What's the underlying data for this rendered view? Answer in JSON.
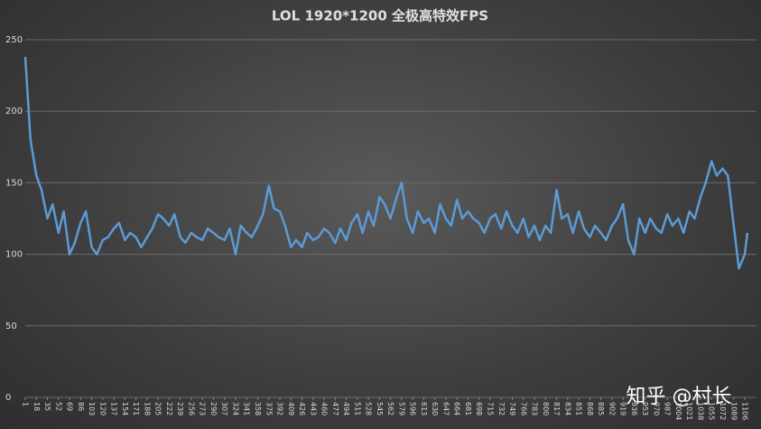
{
  "chart_data": {
    "type": "line",
    "title": "LOL 1920*1200 全极高特效FPS",
    "watermark": "知乎 @村长",
    "x": [
      1,
      9,
      18,
      26,
      35,
      43,
      52,
      60,
      69,
      77,
      86,
      94,
      103,
      111,
      120,
      128,
      137,
      145,
      154,
      162,
      171,
      179,
      188,
      196,
      205,
      213,
      222,
      230,
      239,
      247,
      256,
      264,
      273,
      281,
      290,
      298,
      307,
      315,
      324,
      332,
      341,
      349,
      358,
      366,
      375,
      383,
      392,
      400,
      409,
      417,
      426,
      434,
      443,
      451,
      460,
      468,
      477,
      485,
      494,
      502,
      511,
      519,
      528,
      536,
      545,
      553,
      562,
      570,
      579,
      587,
      596,
      604,
      613,
      621,
      630,
      638,
      647,
      655,
      664,
      672,
      681,
      689,
      698,
      706,
      715,
      723,
      732,
      740,
      749,
      757,
      766,
      774,
      783,
      791,
      800,
      808,
      817,
      825,
      834,
      842,
      851,
      859,
      868,
      876,
      885,
      893,
      902,
      910,
      919,
      927,
      936,
      944,
      953,
      961,
      970,
      978,
      987,
      995,
      1004,
      1012,
      1021,
      1029,
      1038,
      1046,
      1055,
      1063,
      1072,
      1080,
      1089,
      1097,
      1106,
      1110
    ],
    "series": [
      {
        "name": "FPS",
        "color": "#5b9bd5",
        "values": [
          238,
          180,
          155,
          145,
          125,
          135,
          115,
          130,
          100,
          108,
          122,
          130,
          105,
          100,
          110,
          112,
          118,
          122,
          110,
          115,
          112,
          105,
          112,
          118,
          128,
          125,
          120,
          128,
          112,
          108,
          115,
          112,
          110,
          118,
          115,
          112,
          110,
          118,
          100,
          120,
          115,
          112,
          120,
          128,
          148,
          132,
          130,
          120,
          105,
          110,
          105,
          115,
          110,
          112,
          118,
          115,
          108,
          118,
          110,
          122,
          128,
          115,
          130,
          120,
          140,
          135,
          125,
          138,
          150,
          125,
          115,
          130,
          122,
          125,
          115,
          135,
          125,
          120,
          138,
          125,
          130,
          125,
          122,
          115,
          125,
          128,
          118,
          130,
          120,
          115,
          125,
          112,
          120,
          110,
          120,
          115,
          145,
          125,
          128,
          115,
          130,
          118,
          112,
          120,
          115,
          110,
          120,
          125,
          135,
          110,
          100,
          125,
          115,
          125,
          118,
          115,
          128,
          120,
          125,
          115,
          130,
          125,
          140,
          150,
          165,
          155,
          160,
          155,
          120,
          90,
          100,
          115
        ]
      }
    ],
    "xlim": [
      1,
      1124
    ],
    "xticks": [
      1,
      18,
      35,
      52,
      69,
      86,
      103,
      120,
      137,
      154,
      171,
      188,
      205,
      222,
      239,
      256,
      273,
      290,
      307,
      324,
      341,
      358,
      375,
      392,
      409,
      426,
      443,
      460,
      477,
      494,
      511,
      528,
      545,
      562,
      579,
      596,
      613,
      630,
      647,
      664,
      681,
      698,
      715,
      732,
      749,
      766,
      783,
      800,
      817,
      834,
      851,
      868,
      885,
      902,
      919,
      936,
      953,
      970,
      987,
      1004,
      1021,
      1038,
      1055,
      1072,
      1089,
      1106
    ],
    "ylim": [
      0,
      250
    ],
    "yticks": [
      0,
      50,
      100,
      150,
      200,
      250
    ],
    "grid": true
  }
}
